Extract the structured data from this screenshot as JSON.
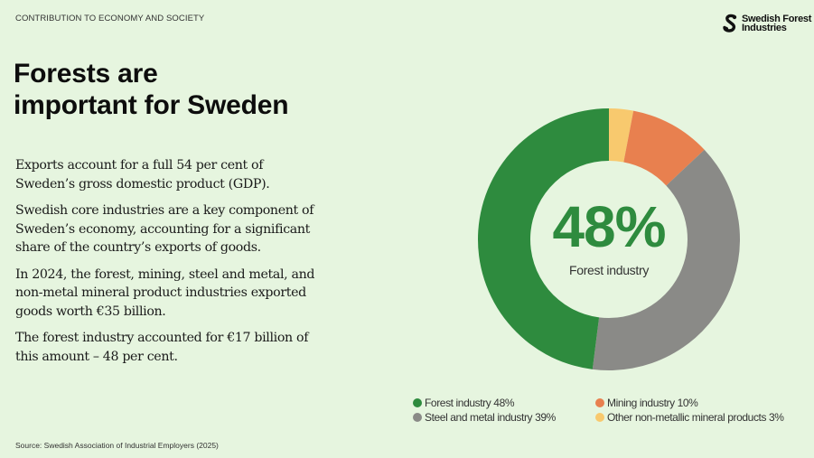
{
  "header": {
    "kicker": "CONTRIBUTION TO ECONOMY AND SOCIETY",
    "logo_line1": "Swedish Forest",
    "logo_line2": "Industries",
    "logo_icon": "swedish-forest-industries-logo-icon"
  },
  "title": {
    "line1": "Forests are",
    "line2": "important for Sweden"
  },
  "body": {
    "paragraphs": [
      "Exports account for a full 54 per cent of Sweden’s gross domestic product (GDP).",
      "Swedish core industries are a key component of Sweden’s economy, accounting for a significant share of the country’s exports of goods.",
      "In 2024, the forest, mining, steel and metal, and non-metal mineral product industries exported goods worth €35 billion.",
      "The forest industry accounted for €17 billion of this amount – 48 per cent."
    ]
  },
  "source": "Source: Swedish Association of Industrial Employers (2025)",
  "center": {
    "value": "48%",
    "label": "Forest industry"
  },
  "legend": [
    {
      "label": "Forest industry 48%",
      "color": "#2e8b3e"
    },
    {
      "label": "Mining industry 10%",
      "color": "#e8804f"
    },
    {
      "label": "Steel and metal industry 39%",
      "color": "#8a8a87"
    },
    {
      "label": "Other non-metallic mineral products 3%",
      "color": "#f8c96e"
    }
  ],
  "chart_data": {
    "type": "pie",
    "subtype": "donut",
    "title": "",
    "center_text": "48% Forest industry",
    "start_angle": "12 o'clock, clockwise",
    "categories": [
      "Other non-metallic mineral products",
      "Mining industry",
      "Steel and metal industry",
      "Forest industry"
    ],
    "values": [
      3,
      10,
      39,
      48
    ],
    "unit": "%",
    "colors": [
      "#f8c96e",
      "#e8804f",
      "#8a8a87",
      "#2e8b3e"
    ],
    "legend_position": "bottom",
    "legend_order": [
      "Forest industry 48%",
      "Mining industry 10%",
      "Steel and metal industry 39%",
      "Other non-metallic mineral products 3%"
    ]
  }
}
